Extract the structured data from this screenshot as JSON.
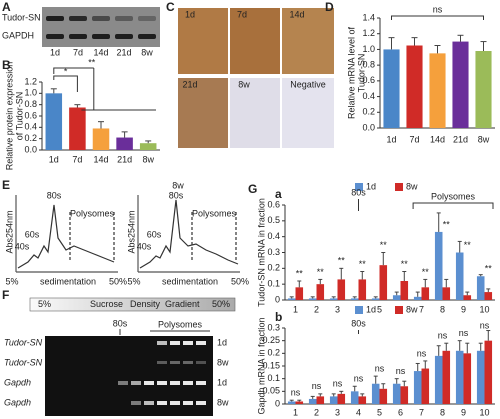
{
  "chart_data": [
    {
      "type": "bar",
      "panel": "B",
      "y_label": [
        "Relative protein expression",
        "of Tudor-SN"
      ],
      "categories": [
        "1d",
        "7d",
        "14d",
        "21d",
        "8w"
      ],
      "values": [
        1.0,
        0.75,
        0.38,
        0.22,
        0.12
      ],
      "errors": [
        0.08,
        0.05,
        0.12,
        0.1,
        0.04
      ],
      "colors": [
        "#4a86c8",
        "#d02b27",
        "#f5a03c",
        "#6a2e9a",
        "#9bbb59"
      ],
      "ylim": [
        0,
        1.2
      ],
      "yticks": [
        {
          "value": 0,
          "label": "0.0"
        },
        0.2,
        0.4,
        0.6,
        0.8,
        {
          "value": 1,
          "label": "1.0"
        },
        1.2
      ],
      "significance": [
        "*",
        "**"
      ]
    },
    {
      "type": "bar",
      "panel": "D",
      "y_label": [
        "Relative mRNA level of",
        "Tudor-SN"
      ],
      "categories": [
        "1d",
        "7d",
        "14d",
        "21d",
        "8w"
      ],
      "values": [
        1.0,
        1.05,
        0.95,
        1.1,
        0.98
      ],
      "errors": [
        0.15,
        0.1,
        0.1,
        0.08,
        0.12
      ],
      "colors": [
        "#4a86c8",
        "#d02b27",
        "#f5a03c",
        "#6a2e9a",
        "#9bbb59"
      ],
      "ylim": [
        0,
        1.4
      ],
      "yticks": [
        {
          "value": 0,
          "label": "0.0"
        },
        0.2,
        0.4,
        0.6,
        0.8,
        {
          "value": 1,
          "label": "1.0"
        },
        1.2,
        1.4
      ],
      "significance": [
        "ns"
      ]
    },
    {
      "type": "bar",
      "panel": "a",
      "y_label": [
        "Tudor-SN mRNA in fraction"
      ],
      "categories": [
        "1",
        "2",
        "3",
        "4",
        "5",
        "6",
        "7",
        "8",
        "9",
        "10"
      ],
      "series": [
        {
          "name": "1d",
          "color": "#5b8fd0",
          "values": [
            0.01,
            0.01,
            0.01,
            0.01,
            0.01,
            0.03,
            0.02,
            0.43,
            0.3,
            0.15
          ],
          "errors": [
            0.01,
            0.01,
            0.01,
            0.01,
            0.01,
            0.02,
            0.03,
            0.12,
            0.07,
            0.01
          ]
        },
        {
          "name": "8w",
          "color": "#d02b27",
          "values": [
            0.08,
            0.1,
            0.13,
            0.13,
            0.22,
            0.12,
            0.08,
            0.08,
            0.03,
            0.05
          ],
          "errors": [
            0.04,
            0.03,
            0.07,
            0.05,
            0.08,
            0.06,
            0.05,
            0.05,
            0.02,
            0.02
          ]
        }
      ],
      "ylim": [
        0,
        0.6
      ],
      "yticks": [
        0,
        0.1,
        0.2,
        0.3,
        0.4,
        0.5,
        0.6
      ],
      "annotations": [
        "**",
        "**",
        "**",
        "**",
        "**",
        "**",
        "**",
        "**",
        "**",
        "**"
      ],
      "fraction_labels": [
        "80s",
        "Polysomes"
      ]
    },
    {
      "type": "bar",
      "panel": "b",
      "y_label": [
        "Gapdh mRNA in fraction"
      ],
      "categories": [
        "1",
        "2",
        "3",
        "4",
        "5",
        "6",
        "7",
        "8",
        "9",
        "10"
      ],
      "series": [
        {
          "name": "1d",
          "color": "#5b8fd0",
          "values": [
            0.01,
            0.02,
            0.03,
            0.05,
            0.08,
            0.08,
            0.13,
            0.19,
            0.21,
            0.21
          ],
          "errors": [
            0.005,
            0.01,
            0.01,
            0.02,
            0.03,
            0.02,
            0.03,
            0.04,
            0.04,
            0.03
          ]
        },
        {
          "name": "8w",
          "color": "#d02b27",
          "values": [
            0.01,
            0.03,
            0.04,
            0.03,
            0.06,
            0.07,
            0.14,
            0.21,
            0.2,
            0.25
          ],
          "errors": [
            0.005,
            0.01,
            0.01,
            0.01,
            0.02,
            0.02,
            0.03,
            0.03,
            0.04,
            0.04
          ]
        }
      ],
      "ylim": [
        0,
        0.3
      ],
      "yticks": [
        0,
        0.05,
        0.1,
        0.15,
        0.2,
        0.25,
        0.3
      ],
      "annotations": [
        "ns",
        "ns",
        "ns",
        "ns",
        "ns",
        "ns",
        "ns",
        "ns",
        "ns",
        "ns"
      ],
      "fraction_labels": [
        "80s"
      ]
    }
  ],
  "panels": {
    "A": {
      "letter": "A",
      "lanes": [
        "1d",
        "7d",
        "14d",
        "21d",
        "8w"
      ],
      "rows": [
        "Tudor-SN",
        "GAPDH"
      ]
    },
    "C": {
      "letter": "C",
      "images": [
        "1d",
        "7d",
        "14d",
        "21d",
        "8w",
        "Negative"
      ]
    },
    "E": {
      "letter": "E",
      "y_label": "Abs254nm",
      "x_label": "sedimentation",
      "profiles": [
        {
          "peaks": [
            "40s",
            "60s",
            "80s"
          ],
          "region": "Polysomes",
          "start": "5%",
          "end": "50%"
        },
        {
          "peaks": [
            "40s",
            "60s",
            "80s"
          ],
          "region": "Polysomes",
          "start": "5%",
          "end": "50%",
          "label": "8w"
        }
      ]
    },
    "F": {
      "letter": "F",
      "gradient": [
        "5%",
        "Sucrose",
        "Density",
        "Gradient",
        "50%"
      ],
      "marker": "80s",
      "region": "Polysomes",
      "rows": [
        {
          "gene": "Tudor-SN",
          "age": "1d"
        },
        {
          "gene": "Tudor-SN",
          "age": "8w"
        },
        {
          "gene": "Gapdh",
          "age": "1d"
        },
        {
          "gene": "Gapdh",
          "age": "8w"
        }
      ]
    },
    "G": {
      "letter": "G"
    }
  }
}
